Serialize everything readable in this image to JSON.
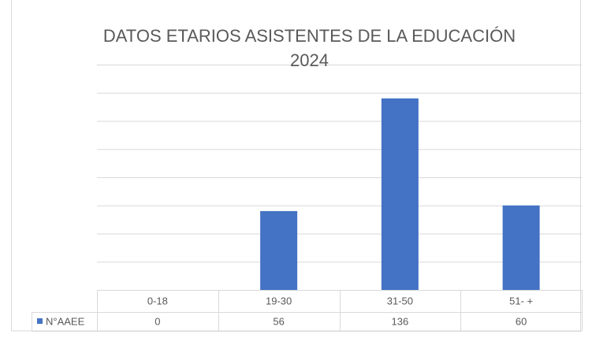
{
  "chart_data": {
    "type": "bar",
    "title": "DATOS ETARIOS ASISTENTES DE LA EDUCACIÓN 2024",
    "categories": [
      "0-18",
      "19-30",
      "31-50",
      "51- +"
    ],
    "series": [
      {
        "name": "N°AAEE",
        "color": "#4472c4",
        "values": [
          0,
          56,
          136,
          60
        ]
      }
    ],
    "ylim": [
      0,
      160
    ],
    "yticks": [
      0,
      20,
      40,
      60,
      80,
      100,
      120,
      140,
      160
    ],
    "grid": true
  }
}
